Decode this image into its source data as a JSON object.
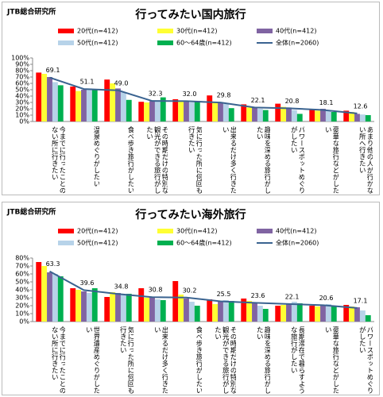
{
  "chart_data": [
    {
      "type": "bar",
      "source": "JTB総合研究所",
      "title": "行ってみたい国内旅行",
      "categories": [
        "今までに行ったことのない所に行きたい",
        "温泉めぐりがしたい",
        "食べ歩き旅行がしたい",
        "その時期だけの特別な観光ができる旅行がしたい",
        "気に行った所に何回も行きたい",
        "出来るだけ多く行きたい",
        "趣味を深める旅行がしたい",
        "パワースポットめぐりがしたい",
        "豪華な旅行などがしたい",
        "あまり他の人が行かない所へ行きたい"
      ],
      "series": [
        {
          "name": "20代(n=412)",
          "color": "#ff0000",
          "values": [
            77,
            55,
            66,
            31,
            35,
            41,
            27,
            28,
            20,
            17
          ]
        },
        {
          "name": "30代(n=412)",
          "color": "#ffff33",
          "values": [
            75,
            48,
            60,
            30,
            32,
            30,
            22,
            23,
            17,
            15
          ]
        },
        {
          "name": "40代(n=412)",
          "color": "#8064a2",
          "values": [
            70,
            50,
            52,
            32,
            31,
            30,
            22,
            22,
            20,
            12
          ]
        },
        {
          "name": "50代(n=412)",
          "color": "#b7d3e9",
          "values": [
            62,
            52,
            46,
            33,
            30,
            28,
            20,
            18,
            17,
            11
          ]
        },
        {
          "name": "60～64歳(n=412)",
          "color": "#00b050",
          "values": [
            57,
            50,
            34,
            38,
            32,
            21,
            18,
            12,
            15,
            10
          ]
        },
        {
          "name": "全体(n=2060)",
          "color": "#3a6390",
          "type": "line",
          "values": [
            69.1,
            51.1,
            49.0,
            32.3,
            32.0,
            29.8,
            22.1,
            20.8,
            18.1,
            12.6
          ],
          "value_labels": [
            "69.1",
            "51.1",
            "49.0",
            "32.3",
            "32.0",
            "29.8",
            "22.1",
            "20.8",
            "18.1",
            "12.6"
          ]
        }
      ],
      "ylim": [
        0,
        100
      ],
      "yticks": [
        {
          "value": 0,
          "label": "0%"
        },
        {
          "value": 10,
          "label": "10%"
        },
        {
          "value": 20,
          "label": "20%"
        },
        {
          "value": 30,
          "label": "30%"
        },
        {
          "value": 40,
          "label": "40%"
        },
        {
          "value": 50,
          "label": "50%"
        },
        {
          "value": 60,
          "label": "60%"
        },
        {
          "value": 70,
          "label": "70%"
        },
        {
          "value": 80,
          "label": "80%"
        },
        {
          "value": 90,
          "label": "90%"
        },
        {
          "value": 100,
          "label": "100%"
        }
      ],
      "grid": false
    },
    {
      "type": "bar",
      "source": "JTB総合研究所",
      "title": "行ってみたい海外旅行",
      "categories": [
        "今までに行ったことのない所に行きたい",
        "世界遺産めぐりがしたい",
        "気に行った所に何回も行きたい",
        "出来るだけ多く行きたい",
        "食べ歩き旅行がしたい",
        "その時期だけの特別な観光ができる旅行がしたい",
        "趣味を深める旅行がしたい",
        "長期滞在で暮らすような旅行がしたい",
        "豪華な旅行などがしたい",
        "パワースポットめぐりがしたい"
      ],
      "series": [
        {
          "name": "20代(n=412)",
          "color": "#ff0000",
          "values": [
            75,
            42,
            31,
            42,
            51,
            28,
            29,
            20,
            20,
            21
          ]
        },
        {
          "name": "30代(n=412)",
          "color": "#ffff33",
          "values": [
            70,
            40,
            37,
            30,
            34,
            22,
            26,
            21,
            19,
            19
          ]
        },
        {
          "name": "40代(n=412)",
          "color": "#8064a2",
          "values": [
            62,
            38,
            36,
            30,
            29,
            26,
            23,
            22,
            21,
            18
          ]
        },
        {
          "name": "50代(n=412)",
          "color": "#b7d3e9",
          "values": [
            60,
            36,
            34,
            28,
            25,
            27,
            20,
            25,
            22,
            14
          ]
        },
        {
          "name": "60～64歳(n=412)",
          "color": "#00b050",
          "values": [
            57,
            42,
            35,
            27,
            20,
            26,
            16,
            23,
            20,
            8
          ]
        },
        {
          "name": "全体(n=2060)",
          "color": "#3a6390",
          "type": "line",
          "values": [
            63.3,
            39.6,
            34.8,
            30.8,
            30.2,
            25.5,
            23.6,
            22.1,
            20.6,
            17.1
          ]
        }
      ],
      "ylim": [
        0,
        80
      ],
      "yticks": [
        {
          "value": 0,
          "label": "0%"
        },
        {
          "value": 10,
          "label": "10%"
        },
        {
          "value": 20,
          "label": "20%"
        },
        {
          "value": 30,
          "label": "30%"
        },
        {
          "value": 40,
          "label": "40%"
        },
        {
          "value": 50,
          "label": "50%"
        },
        {
          "value": 60,
          "label": "60%"
        },
        {
          "value": 70,
          "label": "70%"
        },
        {
          "value": 80,
          "label": "80%"
        }
      ],
      "grid": false
    }
  ]
}
